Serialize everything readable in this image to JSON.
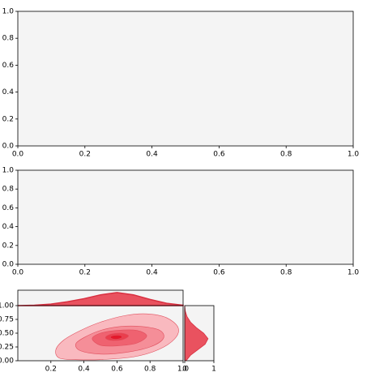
{
  "chart_data": [
    {
      "type": "line",
      "xlim": [
        0,
        1
      ],
      "ylim": [
        0,
        1
      ],
      "xticks": [
        {
          "value": 0,
          "label": "0.0"
        },
        {
          "value": 0.2,
          "label": "0.2"
        },
        {
          "value": 0.4,
          "label": "0.4"
        },
        {
          "value": 0.6,
          "label": "0.6"
        },
        {
          "value": 0.8,
          "label": "0.8"
        },
        {
          "value": 1,
          "label": "1.0"
        }
      ],
      "yticks": [
        {
          "value": 0,
          "label": "0.0"
        },
        {
          "value": 0.2,
          "label": "0.2"
        },
        {
          "value": 0.4,
          "label": "0.4"
        },
        {
          "value": 0.6,
          "label": "0.6"
        },
        {
          "value": 0.8,
          "label": "0.8"
        },
        {
          "value": 1,
          "label": "1.0"
        }
      ]
    },
    {
      "type": "line",
      "xlim": [
        0,
        1
      ],
      "ylim": [
        0,
        1
      ],
      "xticks": [
        {
          "value": 0,
          "label": "0.0"
        },
        {
          "value": 0.2,
          "label": "0.2"
        },
        {
          "value": 0.4,
          "label": "0.4"
        },
        {
          "value": 0.6,
          "label": "0.6"
        },
        {
          "value": 0.8,
          "label": "0.8"
        },
        {
          "value": 1,
          "label": "1.0"
        }
      ],
      "yticks": [
        {
          "value": 0,
          "label": "0.0"
        },
        {
          "value": 0.2,
          "label": "0.2"
        },
        {
          "value": 0.4,
          "label": "0.4"
        },
        {
          "value": 0.6,
          "label": "0.6"
        },
        {
          "value": 0.8,
          "label": "0.8"
        },
        {
          "value": 1,
          "label": "1.0"
        }
      ]
    },
    {
      "type": "contour",
      "xlim": [
        0,
        1
      ],
      "ylim": [
        0,
        1
      ],
      "xticks": [
        {
          "value": 0.2,
          "label": "0.2"
        },
        {
          "value": 0.4,
          "label": "0.4"
        },
        {
          "value": 0.6,
          "label": "0.6"
        },
        {
          "value": 0.8,
          "label": "0.8"
        },
        {
          "value": 1,
          "label": "1.0"
        }
      ],
      "yticks": [
        {
          "value": 0,
          "label": "0.00"
        },
        {
          "value": 0.25,
          "label": "0.25"
        },
        {
          "value": 0.5,
          "label": "0.50"
        },
        {
          "value": 0.75,
          "label": "0.75"
        },
        {
          "value": 1,
          "label": "1.00"
        }
      ],
      "levels": [
        {
          "color": "#f9b9bf",
          "x": [
            0.25,
            0.23,
            0.28,
            0.38,
            0.5,
            0.65,
            0.78,
            0.9,
            0.97,
            0.95,
            0.85,
            0.7,
            0.5,
            0.35
          ],
          "y": [
            0.05,
            0.2,
            0.38,
            0.55,
            0.7,
            0.82,
            0.85,
            0.78,
            0.6,
            0.4,
            0.2,
            0.07,
            0.02,
            0.02
          ]
        },
        {
          "color": "#f58e98",
          "x": [
            0.35,
            0.4,
            0.5,
            0.62,
            0.75,
            0.86,
            0.88,
            0.8,
            0.65,
            0.5,
            0.38
          ],
          "y": [
            0.3,
            0.42,
            0.55,
            0.62,
            0.62,
            0.55,
            0.4,
            0.25,
            0.15,
            0.12,
            0.18
          ]
        },
        {
          "color": "#ef6270",
          "x": [
            0.45,
            0.5,
            0.6,
            0.72,
            0.78,
            0.72,
            0.6,
            0.5
          ],
          "y": [
            0.4,
            0.5,
            0.55,
            0.55,
            0.45,
            0.32,
            0.27,
            0.28
          ]
        },
        {
          "color": "#ea3e4d",
          "x": [
            0.53,
            0.56,
            0.63,
            0.67,
            0.63,
            0.56
          ],
          "y": [
            0.42,
            0.48,
            0.5,
            0.45,
            0.38,
            0.37
          ]
        },
        {
          "color": "#e3192b",
          "x": [
            0.56,
            0.58,
            0.62,
            0.63,
            0.6,
            0.57
          ],
          "y": [
            0.43,
            0.46,
            0.46,
            0.42,
            0.39,
            0.4
          ]
        }
      ]
    },
    {
      "type": "area",
      "orientation": "vertical",
      "color": "#e8404f",
      "xlim": [
        0,
        1
      ],
      "ylim": [
        0,
        2
      ],
      "x": [
        0,
        0.1,
        0.2,
        0.3,
        0.4,
        0.5,
        0.6,
        0.7,
        0.8,
        0.9,
        1.0
      ],
      "values": [
        0,
        0.05,
        0.2,
        0.5,
        0.9,
        1.4,
        1.7,
        1.4,
        0.8,
        0.3,
        0.05
      ]
    },
    {
      "type": "area",
      "orientation": "horizontal",
      "color": "#e8404f",
      "xlim": [
        0,
        1
      ],
      "ylim": [
        0,
        1
      ],
      "xticks": [
        0,
        1
      ],
      "y": [
        0,
        0.1,
        0.2,
        0.3,
        0.4,
        0.5,
        0.6,
        0.7,
        0.8,
        0.9,
        1.0
      ],
      "values": [
        0.05,
        0.2,
        0.45,
        0.7,
        0.8,
        0.65,
        0.4,
        0.2,
        0.08,
        0.02,
        0
      ]
    }
  ]
}
